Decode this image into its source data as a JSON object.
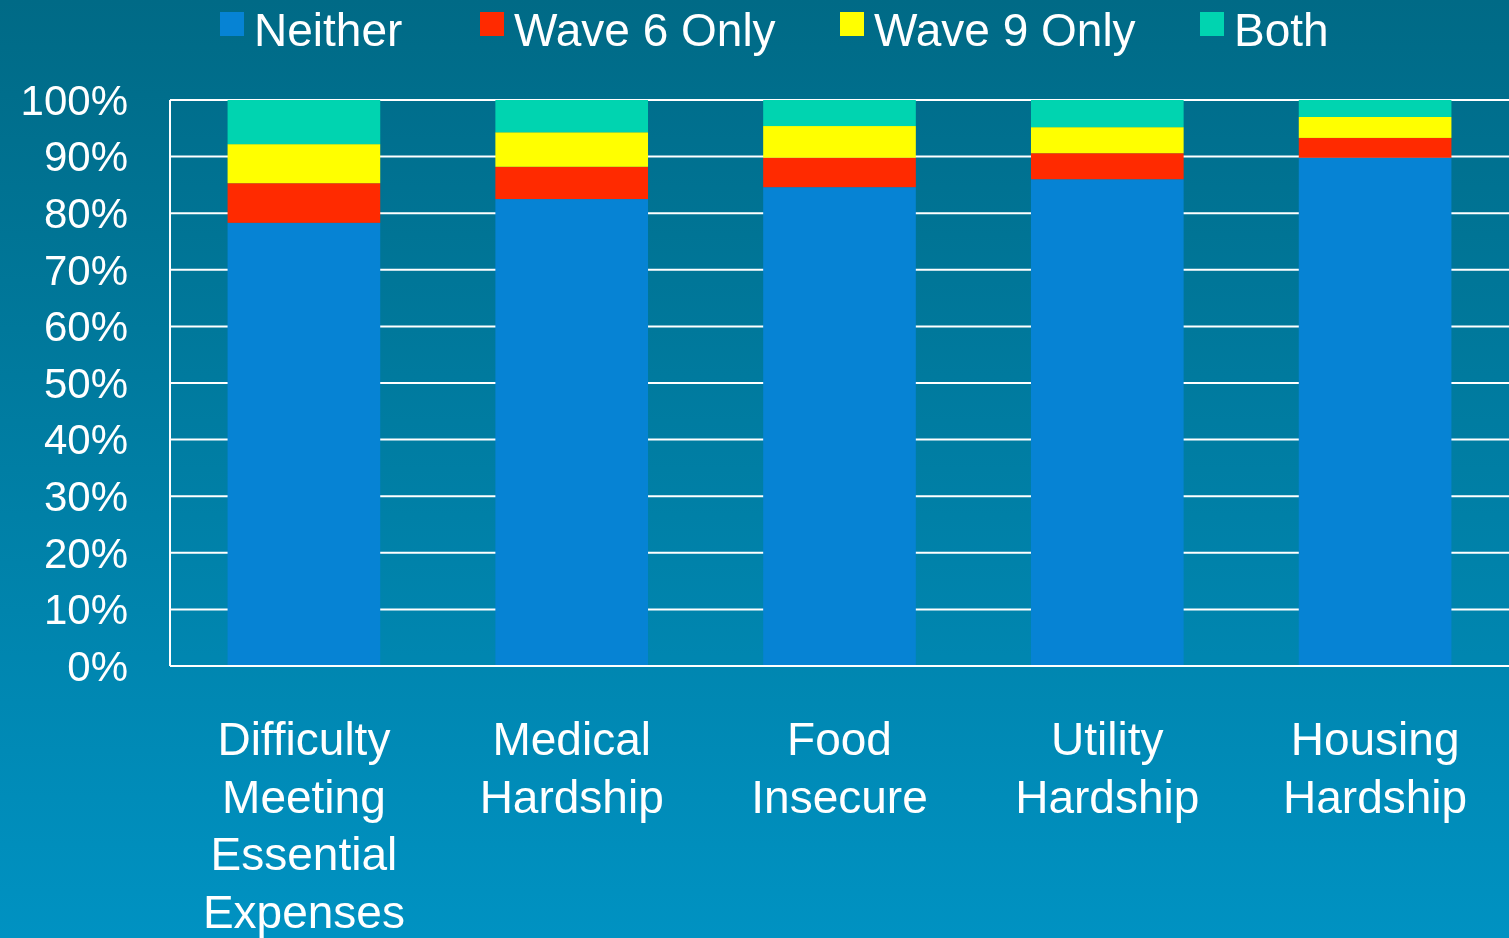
{
  "chart_data": {
    "type": "bar",
    "stacked": true,
    "categories": [
      "Difficulty Meeting Essential Expenses",
      "Medical Hardship",
      "Food Insecure",
      "Utility Hardship",
      "Housing Hardship"
    ],
    "series": [
      {
        "name": "Neither",
        "color": "#0683d4",
        "values": [
          78.3,
          82.5,
          84.6,
          86.0,
          89.8
        ]
      },
      {
        "name": "Wave 6 Only",
        "color": "#ff2a00",
        "values": [
          7.0,
          5.7,
          5.2,
          4.6,
          3.5
        ]
      },
      {
        "name": "Wave 9 Only",
        "color": "#ffff00",
        "values": [
          6.9,
          6.1,
          5.6,
          4.6,
          3.7
        ]
      },
      {
        "name": "Both",
        "color": "#00d4b0",
        "values": [
          7.8,
          5.7,
          4.6,
          4.8,
          3.0
        ]
      }
    ],
    "ylim": [
      0,
      100
    ],
    "yticks": [
      {
        "value": 0,
        "label": "0%"
      },
      {
        "value": 10,
        "label": "10%"
      },
      {
        "value": 20,
        "label": "20%"
      },
      {
        "value": 30,
        "label": "30%"
      },
      {
        "value": 40,
        "label": "40%"
      },
      {
        "value": 50,
        "label": "50%"
      },
      {
        "value": 60,
        "label": "60%"
      },
      {
        "value": 70,
        "label": "70%"
      },
      {
        "value": 80,
        "label": "80%"
      },
      {
        "value": 90,
        "label": "90%"
      },
      {
        "value": 100,
        "label": "100%"
      }
    ],
    "grid": "y",
    "legend": "top"
  }
}
